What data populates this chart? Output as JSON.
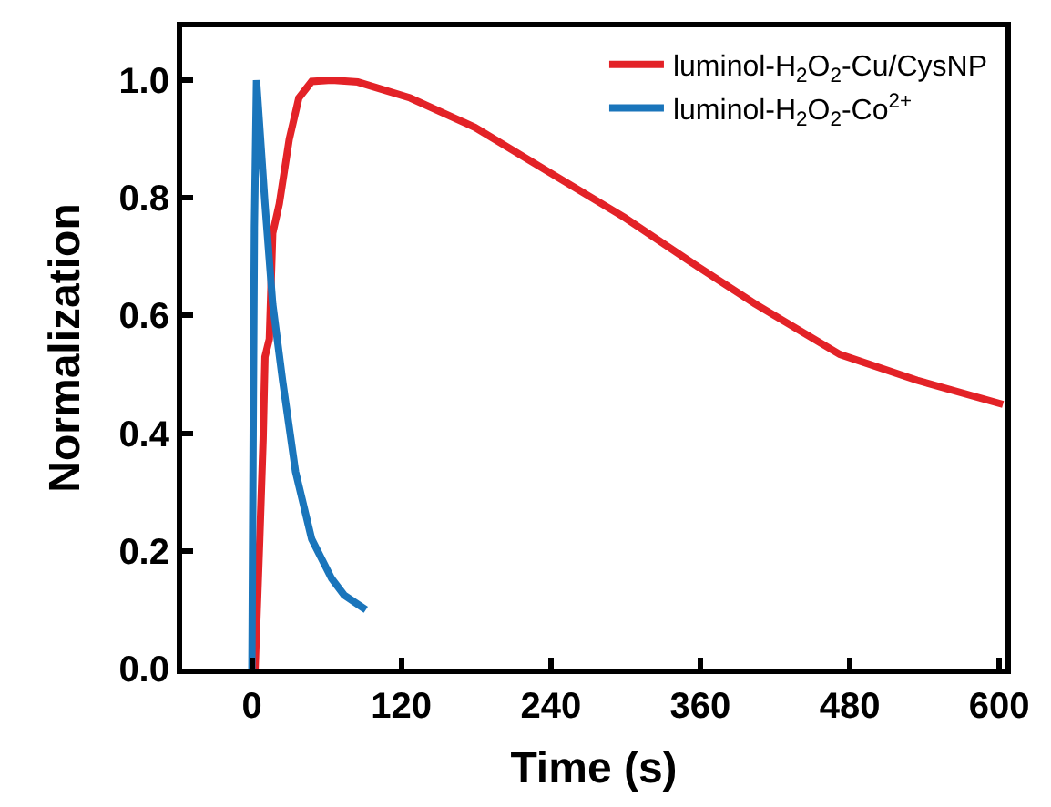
{
  "chart_data": {
    "type": "line",
    "xlabel": "Time (s)",
    "ylabel": "Normalization",
    "xlim": [
      -56,
      605
    ],
    "xticks": [
      0,
      120,
      240,
      360,
      480,
      600
    ],
    "ylim": [
      0,
      1.09
    ],
    "yticks": [
      {
        "value": 0,
        "label": "0.0"
      },
      0.2,
      0.4,
      0.6,
      0.8,
      {
        "value": 1,
        "label": "1.0"
      }
    ],
    "legend": "top right",
    "marker": "none",
    "line_style": "solid",
    "series": [
      {
        "name": "luminol-H$_{2}$O$_{2}$-Cu/CysNP",
        "color": "#e32227",
        "x": [
          2.6,
          6.3,
          9,
          10.5,
          14,
          16.7,
          22,
          30,
          37.7,
          48,
          64,
          85,
          127,
          179,
          236,
          299,
          351,
          404,
          472,
          534,
          603
        ],
        "values": [
          0,
          0.22,
          0.39,
          0.53,
          0.56,
          0.74,
          0.79,
          0.9,
          0.97,
          0.998,
          1.0,
          0.997,
          0.97,
          0.92,
          0.847,
          0.767,
          0.693,
          0.62,
          0.534,
          0.49,
          0.449
        ]
      },
      {
        "name": "luminol-H$_{2}$O$_{2}$-Co$^{2+}$",
        "color": "#1a75bb",
        "x": [
          0,
          1,
          2,
          3.7,
          10.5,
          16.7,
          24.6,
          35,
          48,
          64,
          74,
          91.5
        ],
        "values": [
          0,
          0.4,
          0.75,
          1.0,
          0.79,
          0.62,
          0.49,
          0.335,
          0.22,
          0.153,
          0.125,
          0.1
        ]
      }
    ]
  }
}
